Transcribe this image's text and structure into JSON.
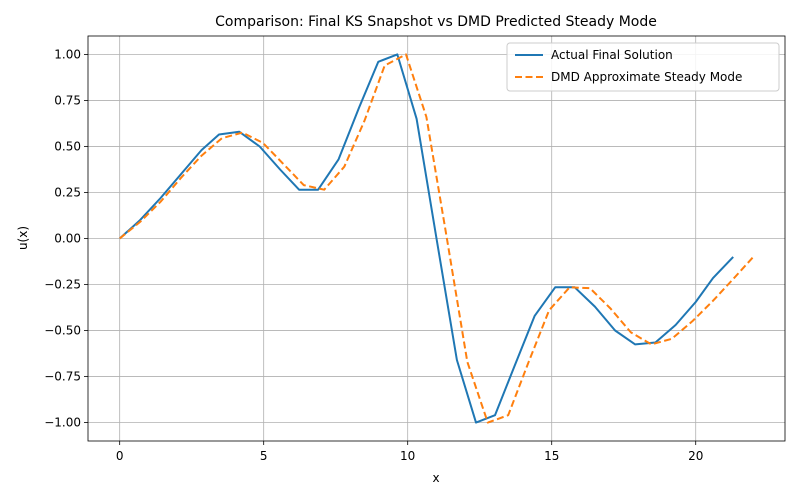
{
  "chart_data": {
    "type": "line",
    "title": "Comparison: Final KS Snapshot vs DMD Predicted Steady Mode",
    "xlabel": "x",
    "ylabel": "u(x)",
    "xlim": [
      -1.1,
      23.1
    ],
    "ylim": [
      -1.1,
      1.1
    ],
    "xticks": [
      0,
      5,
      10,
      15,
      20
    ],
    "xtick_labels": [
      "0",
      "5",
      "10",
      "15",
      "20"
    ],
    "yticks": [
      -1.0,
      -0.75,
      -0.5,
      -0.25,
      0.0,
      0.25,
      0.5,
      0.75,
      1.0
    ],
    "ytick_labels": [
      "−1.00",
      "−0.75",
      "−0.50",
      "−0.25",
      "0.00",
      "0.25",
      "0.50",
      "0.75",
      "1.00"
    ],
    "grid": true,
    "legend_position": "top-right",
    "series": [
      {
        "name": "Actual Final Solution",
        "color": "#1f77b4",
        "style": "solid",
        "x": [
          0,
          0.71,
          1.42,
          2.13,
          2.84,
          3.45,
          4.15,
          4.86,
          5.57,
          6.23,
          6.89,
          7.6,
          8.31,
          8.98,
          9.64,
          10.31,
          11.0,
          11.71,
          12.37,
          13.03,
          13.69,
          14.41,
          15.12,
          15.8,
          16.5,
          17.2,
          17.9,
          18.6,
          19.3,
          20.0,
          20.6,
          21.3
        ],
        "y": [
          0.0,
          0.1,
          0.22,
          0.35,
          0.48,
          0.565,
          0.58,
          0.5,
          0.375,
          0.265,
          0.265,
          0.43,
          0.71,
          0.96,
          1.0,
          0.65,
          0.0,
          -0.66,
          -1.0,
          -0.96,
          -0.7,
          -0.42,
          -0.265,
          -0.265,
          -0.37,
          -0.5,
          -0.575,
          -0.565,
          -0.47,
          -0.345,
          -0.215,
          -0.1
        ]
      },
      {
        "name": "DMD Approximate Steady Mode",
        "color": "#ff7f0e",
        "style": "dashed",
        "x": [
          0,
          0.71,
          1.42,
          2.13,
          2.84,
          3.55,
          4.26,
          4.97,
          5.68,
          6.39,
          7.1,
          7.8,
          8.5,
          9.2,
          9.94,
          10.65,
          11.36,
          12.07,
          12.78,
          13.49,
          14.2,
          14.91,
          15.62,
          16.33,
          17.04,
          17.75,
          18.46,
          19.17,
          19.88,
          20.59,
          21.3,
          22.0
        ],
        "y": [
          0.0,
          0.09,
          0.2,
          0.33,
          0.45,
          0.545,
          0.575,
          0.52,
          0.405,
          0.29,
          0.265,
          0.39,
          0.64,
          0.94,
          1.0,
          0.66,
          0.0,
          -0.67,
          -1.0,
          -0.96,
          -0.67,
          -0.39,
          -0.265,
          -0.27,
          -0.38,
          -0.51,
          -0.575,
          -0.545,
          -0.45,
          -0.34,
          -0.22,
          -0.1
        ]
      }
    ]
  }
}
